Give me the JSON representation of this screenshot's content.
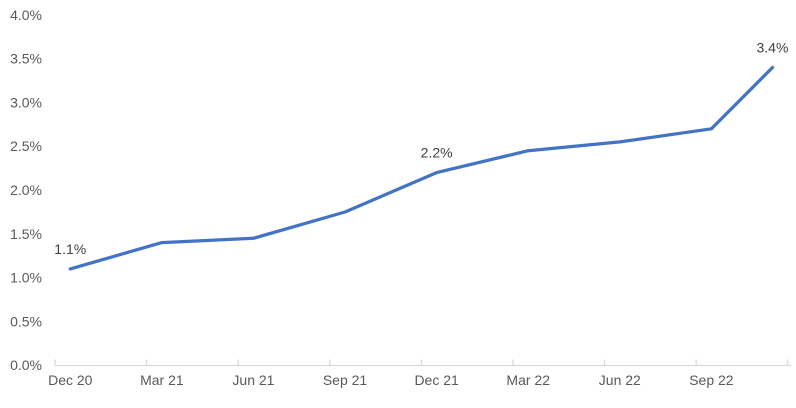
{
  "chart_data": {
    "type": "line",
    "title": "",
    "unit": "percent",
    "grid": "off",
    "legend": "none",
    "ylim": [
      0.0,
      4.0
    ],
    "y_tick_step": 0.5,
    "x_axis_span_months": 24,
    "x_tick_interval_months": 3,
    "y_ticks": [
      {
        "label": "0.0%",
        "value": 0.0
      },
      {
        "label": "0.5%",
        "value": 0.5
      },
      {
        "label": "1.0%",
        "value": 1.0
      },
      {
        "label": "1.5%",
        "value": 1.5
      },
      {
        "label": "2.0%",
        "value": 2.0
      },
      {
        "label": "2.5%",
        "value": 2.5
      },
      {
        "label": "3.0%",
        "value": 3.0
      },
      {
        "label": "3.5%",
        "value": 3.5
      },
      {
        "label": "4.0%",
        "value": 4.0
      }
    ],
    "x_ticks": [
      {
        "label": "Dec 20",
        "month": 0
      },
      {
        "label": "Mar 21",
        "month": 3
      },
      {
        "label": "Jun 21",
        "month": 6
      },
      {
        "label": "Sep 21",
        "month": 9
      },
      {
        "label": "Dec 21",
        "month": 12
      },
      {
        "label": "Mar 22",
        "month": 15
      },
      {
        "label": "Jun 22",
        "month": 18
      },
      {
        "label": "Sep 22",
        "month": 21
      }
    ],
    "points": [
      {
        "month": 0,
        "value": 1.1,
        "data_label": "1.1%"
      },
      {
        "month": 3,
        "value": 1.4
      },
      {
        "month": 6,
        "value": 1.45
      },
      {
        "month": 9,
        "value": 1.75
      },
      {
        "month": 12,
        "value": 2.2,
        "data_label": "2.2%"
      },
      {
        "month": 15,
        "value": 2.45
      },
      {
        "month": 18,
        "value": 2.55
      },
      {
        "month": 21,
        "value": 2.7
      },
      {
        "month": 23,
        "value": 3.4,
        "data_label": "3.4%"
      }
    ],
    "colors": {
      "line": "#4472C4",
      "axis_line": "#D9D9D9",
      "axis_text": "#595959",
      "data_label_text": "#404040",
      "background": "#FFFFFF"
    }
  }
}
